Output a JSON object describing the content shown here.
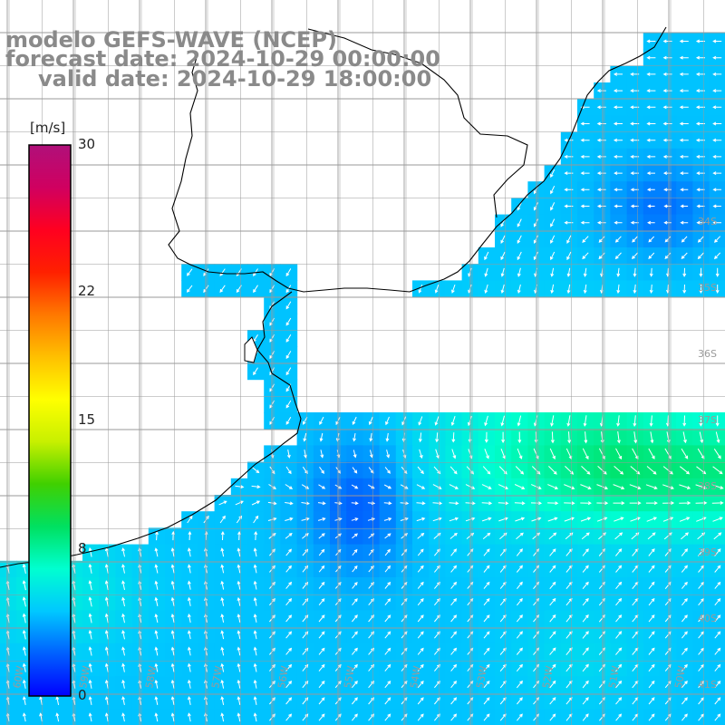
{
  "title": {
    "line1": "modelo GEFS-WAVE (NCEP)",
    "line2": "forecast date: 2024-10-29 00:00:00",
    "line3": "valid date: 2024-10-29 18:00:00"
  },
  "colorbar": {
    "unit": "[m/s]",
    "ticks": [
      {
        "label": "30",
        "value": 30
      },
      {
        "label": "22",
        "value": 22
      },
      {
        "label": "15",
        "value": 15
      },
      {
        "label": "8",
        "value": 8
      },
      {
        "label": "0",
        "value": 0
      }
    ],
    "range": [
      0,
      30
    ],
    "colors": [
      "#0000ff",
      "#0060ff",
      "#00c8ff",
      "#00ffd0",
      "#00e060",
      "#40d000",
      "#c8f000",
      "#ffff00",
      "#ffc000",
      "#ff7800",
      "#ff2000",
      "#ff0020",
      "#d00060",
      "#b0107a"
    ]
  },
  "axes": {
    "longitude_labels": [
      "60W",
      "59W",
      "58W",
      "57W",
      "56W",
      "55W",
      "54W",
      "53W",
      "52W",
      "51W",
      "50W"
    ],
    "latitude_labels": [
      "34S",
      "35S",
      "36S",
      "37S",
      "38S",
      "39S",
      "40S",
      "41S"
    ]
  },
  "map": {
    "region": "Rio de la Plata / South Atlantic",
    "land_color": "#ffffff",
    "coast_color": "#000000",
    "grid_color": "#9a9a9a",
    "arrow_color": "#ffffff"
  }
}
